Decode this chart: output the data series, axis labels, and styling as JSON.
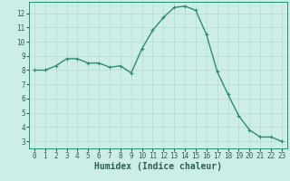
{
  "x": [
    0,
    1,
    2,
    3,
    4,
    5,
    6,
    7,
    8,
    9,
    10,
    11,
    12,
    13,
    14,
    15,
    16,
    17,
    18,
    19,
    20,
    21,
    22,
    23
  ],
  "y": [
    8.0,
    8.0,
    8.3,
    8.8,
    8.8,
    8.5,
    8.5,
    8.2,
    8.3,
    7.8,
    9.5,
    10.8,
    11.7,
    12.4,
    12.5,
    12.2,
    10.5,
    7.9,
    6.3,
    4.8,
    3.8,
    3.3,
    3.3,
    3.0
  ],
  "line_color": "#2e8b74",
  "marker": "+",
  "marker_size": 3,
  "background_color": "#cdeee8",
  "grid_color": "#b8d8d2",
  "xlabel": "Humidex (Indice chaleur)",
  "xlim": [
    -0.5,
    23.5
  ],
  "ylim": [
    2.5,
    12.8
  ],
  "yticks": [
    3,
    4,
    5,
    6,
    7,
    8,
    9,
    10,
    11,
    12
  ],
  "xticks": [
    0,
    1,
    2,
    3,
    4,
    5,
    6,
    7,
    8,
    9,
    10,
    11,
    12,
    13,
    14,
    15,
    16,
    17,
    18,
    19,
    20,
    21,
    22,
    23
  ],
  "tick_label_fontsize": 5.5,
  "xlabel_fontsize": 7.0,
  "line_width": 1.0,
  "marker_edge_width": 0.8
}
